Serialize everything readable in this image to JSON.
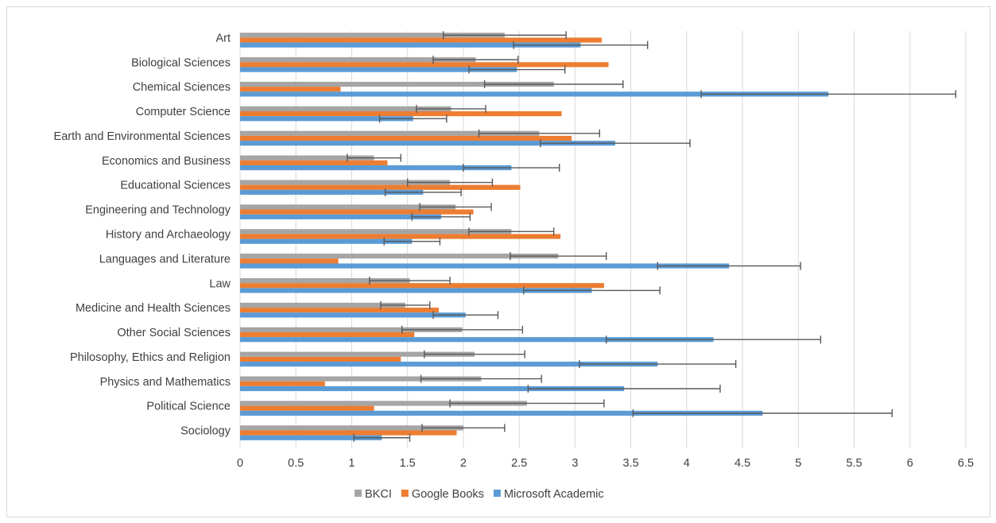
{
  "chart_data": {
    "type": "bar",
    "orientation": "horizontal",
    "title": "",
    "xlabel": "",
    "ylabel": "",
    "xlim": [
      0,
      6.5
    ],
    "x_ticks": [
      "0",
      "0.5",
      "1",
      "1.5",
      "2",
      "2.5",
      "3",
      "3.5",
      "4",
      "4.5",
      "5",
      "5.5",
      "6",
      "6.5"
    ],
    "grid": "vertical",
    "legend_position": "bottom",
    "categories": [
      "Art",
      "Biological Sciences",
      "Chemical Sciences",
      "Computer Science",
      "Earth and Environmental Sciences",
      "Economics and Business",
      "Educational Sciences",
      "Engineering and Technology",
      "History and Archaeology",
      "Languages and Literature",
      "Law",
      "Medicine and Health Sciences",
      "Other Social Sciences",
      "Philosophy, Ethics and Religion",
      "Physics and Mathematics",
      "Political Science",
      "Sociology"
    ],
    "series": [
      {
        "name": "BKCI",
        "color": "#a5a5a5",
        "values": [
          2.37,
          2.11,
          2.81,
          1.89,
          2.68,
          1.2,
          1.88,
          1.93,
          2.43,
          2.85,
          1.52,
          1.48,
          1.99,
          2.1,
          2.16,
          2.57,
          2.0
        ],
        "errors": [
          0.55,
          0.38,
          0.62,
          0.31,
          0.54,
          0.24,
          0.38,
          0.32,
          0.38,
          0.43,
          0.36,
          0.22,
          0.54,
          0.45,
          0.54,
          0.69,
          0.37
        ]
      },
      {
        "name": "Google Books",
        "color": "#ed7d31",
        "values": [
          3.24,
          3.3,
          0.9,
          2.88,
          2.97,
          1.32,
          2.51,
          2.09,
          2.87,
          0.88,
          3.26,
          1.78,
          1.56,
          1.44,
          0.76,
          1.2,
          1.94
        ]
      },
      {
        "name": "Microsoft Academic",
        "color": "#5b9bd5",
        "values": [
          3.05,
          2.48,
          5.27,
          1.55,
          3.36,
          2.43,
          1.64,
          1.8,
          1.54,
          4.38,
          3.15,
          2.02,
          4.24,
          3.74,
          3.44,
          4.68,
          1.27
        ],
        "errors": [
          0.6,
          0.43,
          1.14,
          0.3,
          0.67,
          0.43,
          0.34,
          0.26,
          0.25,
          0.64,
          0.61,
          0.29,
          0.96,
          0.7,
          0.86,
          1.16,
          0.25
        ]
      }
    ]
  }
}
